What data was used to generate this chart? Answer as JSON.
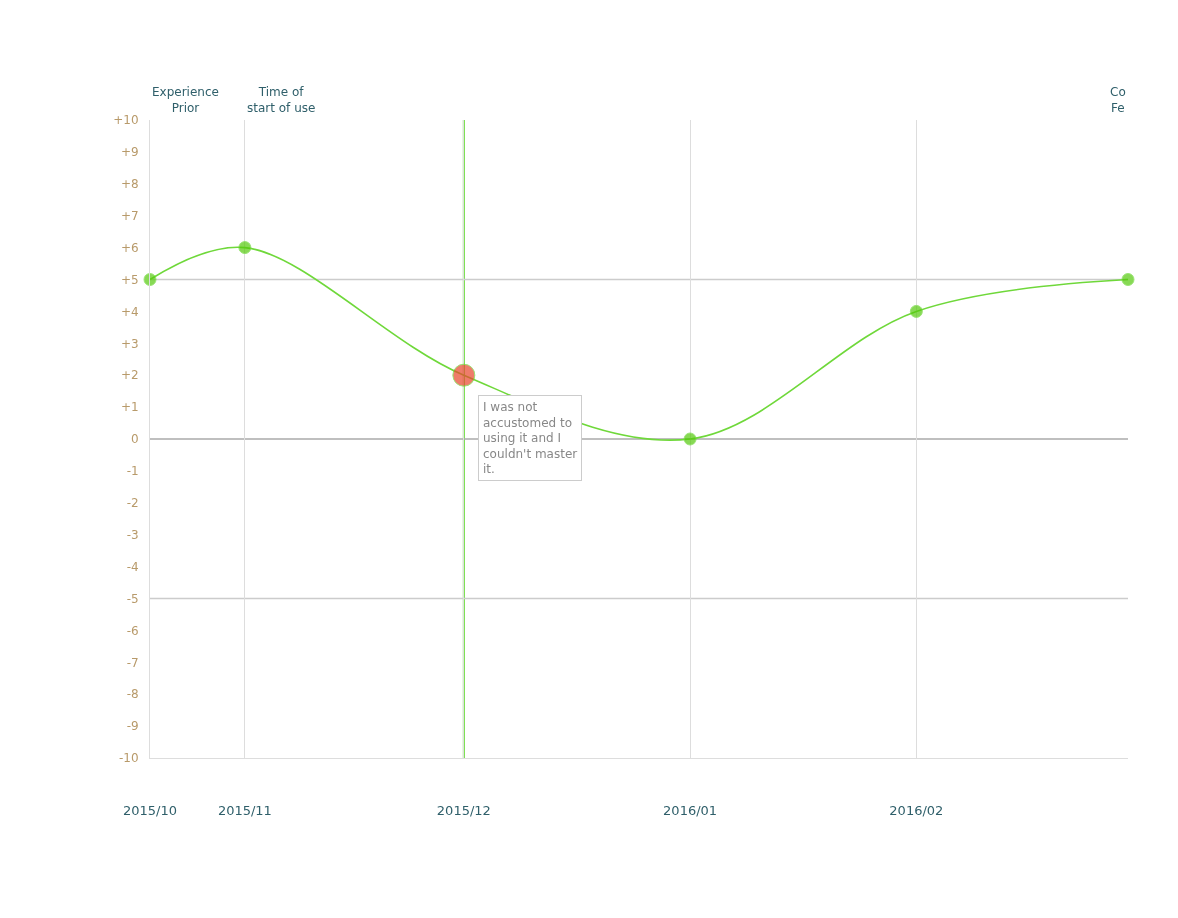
{
  "chart_data": {
    "type": "line",
    "x": [
      "2015-10-19",
      "2015-11-01",
      "2015-12-01",
      "2016-01-01",
      "2016-02-01",
      "2016-03-01"
    ],
    "series": [
      {
        "color": "#6fd83a",
        "colors": [
          "#55c90c",
          "#55c90c",
          "#e8452c",
          "#55c90c",
          "#55c90c",
          "#55c90c"
        ],
        "values": [
          5,
          6,
          2,
          0,
          4,
          5
        ]
      }
    ],
    "marker": "circle",
    "line_style": "solid",
    "xlim": [
      "2015-10-19",
      "2016-03-01"
    ],
    "xticks": [
      {
        "value": "2015-10-19",
        "label": "2015/10"
      },
      {
        "value": "2015-11-01",
        "label": "2015/11"
      },
      {
        "value": "2015-12-01",
        "label": "2015/12"
      },
      {
        "value": "2016-01-01",
        "label": "2016/01"
      },
      {
        "value": "2016-02-01",
        "label": "2016/02"
      }
    ],
    "ylim": [
      -10,
      10
    ],
    "yticks": [
      {
        "value": 10,
        "label": "+10"
      },
      {
        "value": 9,
        "label": "+9"
      },
      {
        "value": 8,
        "label": "+8"
      },
      {
        "value": 7,
        "label": "+7"
      },
      {
        "value": 6,
        "label": "+6"
      },
      {
        "value": 5,
        "label": "+5"
      },
      {
        "value": 4,
        "label": "+4"
      },
      {
        "value": 3,
        "label": "+3"
      },
      {
        "value": 2,
        "label": "+2"
      },
      {
        "value": 1,
        "label": "+1"
      },
      0,
      -1,
      -2,
      -3,
      -4,
      -5,
      -6,
      -7,
      -8,
      -9,
      -10
    ],
    "grid": "x",
    "ref_lines": [
      {
        "axis": "x",
        "value": "2015-12-01",
        "color": "#66dd33"
      },
      {
        "axis": "y",
        "value": 5,
        "color": "#cccccc"
      },
      {
        "axis": "y",
        "value": 0,
        "color": "#aaaaaa"
      },
      {
        "axis": "y",
        "value": -5,
        "color": "#cccccc"
      }
    ],
    "annotations": [
      "Experience\nPrior",
      "Time of\nstart of use",
      "Co\nFe",
      {
        "text": "I was not\naccustomed to\nusing it and I\ncouldn't master\nit.",
        "x": "2015-12-01",
        "y": 2
      }
    ]
  }
}
